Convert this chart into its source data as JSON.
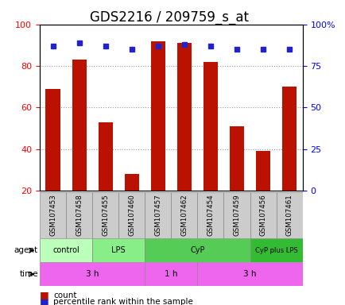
{
  "title": "GDS2216 / 209759_s_at",
  "samples": [
    "GSM107453",
    "GSM107458",
    "GSM107455",
    "GSM107460",
    "GSM107457",
    "GSM107462",
    "GSM107454",
    "GSM107459",
    "GSM107456",
    "GSM107461"
  ],
  "count_values": [
    69,
    83,
    53,
    28,
    92,
    91,
    82,
    51,
    39,
    70
  ],
  "percentile_values": [
    87,
    89,
    87,
    85,
    87,
    88,
    87,
    85,
    85,
    85
  ],
  "ylim_left": [
    20,
    100
  ],
  "ylim_right": [
    0,
    100
  ],
  "yticks_left": [
    20,
    40,
    60,
    80,
    100
  ],
  "ytick_labels_right": [
    "0",
    "25",
    "50",
    "75",
    "100%"
  ],
  "yticks_right": [
    0,
    25,
    50,
    75,
    100
  ],
  "bar_color": "#bb1100",
  "dot_color": "#2222cc",
  "agent_groups": [
    {
      "label": "control",
      "start": 0,
      "end": 2,
      "color": "#bbffbb"
    },
    {
      "label": "LPS",
      "start": 2,
      "end": 4,
      "color": "#88ee88"
    },
    {
      "label": "CyP",
      "start": 4,
      "end": 8,
      "color": "#55cc55"
    },
    {
      "label": "CyP plus LPS",
      "start": 8,
      "end": 10,
      "color": "#33bb33"
    }
  ],
  "time_groups": [
    {
      "label": "3 h",
      "start": 0,
      "end": 4,
      "color": "#ee66ee"
    },
    {
      "label": "1 h",
      "start": 4,
      "end": 6,
      "color": "#ee66ee"
    },
    {
      "label": "3 h",
      "start": 6,
      "end": 10,
      "color": "#ee66ee"
    }
  ],
  "bar_width": 0.55,
  "grid_color": "#999999",
  "label_bg": "#cccccc",
  "title_fontsize": 12,
  "tick_fontsize": 8,
  "legend_fontsize": 7.5
}
